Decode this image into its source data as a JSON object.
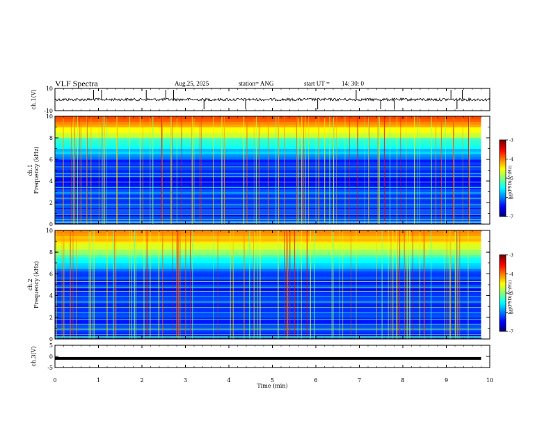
{
  "header": {
    "title": "VLF Spectra",
    "date": "Aug.25, 2025",
    "station": "station= ANG",
    "start_label": "start  UT =",
    "start_time": "14: 30: 0"
  },
  "colors": {
    "frame": "#000000",
    "spec_low": "#00008b",
    "spec_high": "#ff0000"
  },
  "chart_data": [
    {
      "type": "line",
      "name": "ch1-waveform",
      "ylabel": "ch.1(V)",
      "ylim": [
        -10,
        10
      ],
      "yticks": [
        "10",
        "-10"
      ],
      "x_range_min": [
        0,
        10
      ],
      "baseline": 0
    },
    {
      "type": "heatmap",
      "name": "ch1-spectrogram",
      "ylabel": "ch.1\nFrequency (kHz)",
      "ylim": [
        0,
        10
      ],
      "yticks": [
        "0",
        "2",
        "4",
        "6",
        "8",
        "10"
      ],
      "x_range_min": [
        0,
        9.8
      ],
      "colorbar": {
        "label": "log(PSD)(V²/Hz)",
        "range": [
          -7,
          -3
        ],
        "ticks": [
          "-3",
          "-4",
          "-5",
          "-6",
          "-7"
        ]
      }
    },
    {
      "type": "heatmap",
      "name": "ch2-spectrogram",
      "ylabel": "ch.2\nFrequency (kHz)",
      "ylim": [
        0,
        10
      ],
      "yticks": [
        "0",
        "2",
        "4",
        "6",
        "8",
        "10"
      ],
      "x_range_min": [
        0,
        9.8
      ],
      "colorbar": {
        "label": "log(PSD)(V²/Hz)",
        "range": [
          -7,
          -3
        ],
        "ticks": [
          "-3",
          "-4",
          "-5",
          "-6",
          "-7"
        ]
      }
    },
    {
      "type": "line",
      "name": "ch3-waveform",
      "ylabel": "ch.3(V)",
      "ylim": [
        -5,
        5
      ],
      "yticks": [
        "5",
        "0",
        "-5"
      ],
      "x_range_min": [
        0,
        9.8
      ],
      "baseline": -0.9
    }
  ],
  "xaxis": {
    "label": "Time (min)",
    "range": [
      0,
      10
    ],
    "ticks": [
      "0",
      "1",
      "2",
      "3",
      "4",
      "5",
      "6",
      "7",
      "8",
      "9",
      "10"
    ]
  }
}
